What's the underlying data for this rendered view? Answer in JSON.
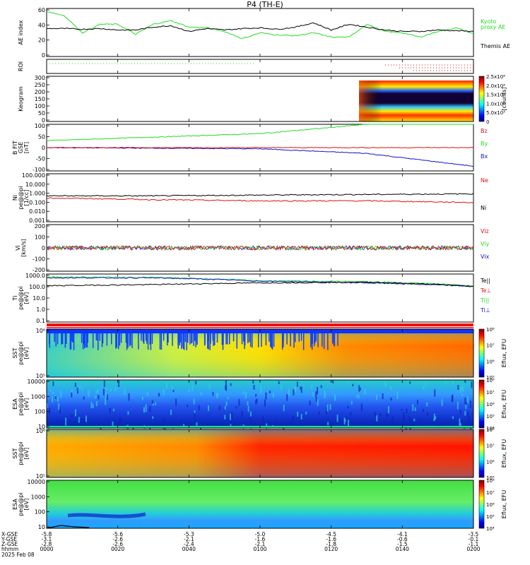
{
  "title": "P4  (TH-E)",
  "colors": {
    "green": "#22dd22",
    "black": "#000000",
    "blue": "#1010d0",
    "red": "#dd1111"
  },
  "panels": [
    {
      "key": "ae",
      "ylabel": [
        "AE index"
      ],
      "yticks": [
        "0",
        "20",
        "40",
        "60"
      ],
      "legend": [
        {
          "text": "Kyoto",
          "color": "green"
        },
        {
          "text": "proxy AE",
          "color": "green"
        },
        {
          "text": "Themis AE",
          "color": "black"
        }
      ]
    },
    {
      "key": "roi",
      "ylabel": [
        "ROI"
      ],
      "yticks": [],
      "legend": []
    },
    {
      "key": "keo",
      "ylabel": [
        "Keogram"
      ],
      "yticks": [
        "0",
        "50",
        "100",
        "150",
        "200",
        "250",
        "300"
      ],
      "colorbar": {
        "ticks": [
          "0",
          "5.0x10³",
          "1.0x10⁴",
          "1.5x10⁴",
          "2.0x10⁴",
          "2.5x10⁴"
        ],
        "label": "[counts]"
      }
    },
    {
      "key": "bfit",
      "ylabel": [
        "B FIT",
        "GSE",
        "[nT]"
      ],
      "yticks": [
        "-100",
        "-50",
        "0",
        "50",
        "100"
      ],
      "legend": [
        {
          "text": "Bz",
          "color": "red"
        },
        {
          "text": "By",
          "color": "green"
        },
        {
          "text": "Bx",
          "color": "blue"
        }
      ]
    },
    {
      "key": "ni",
      "ylabel": [
        "Ni",
        "pe@@pi",
        "[1/cc]"
      ],
      "yticks": [
        "0.001",
        "0.010",
        "0.100",
        "1.000",
        "10.000",
        "100.000"
      ],
      "legend": [
        {
          "text": "Ne",
          "color": "red"
        },
        {
          "text": "Ni",
          "color": "black"
        }
      ]
    },
    {
      "key": "vi",
      "ylabel": [
        "Vi",
        "[km/s]"
      ],
      "yticks": [
        "-200",
        "-100",
        "0",
        "100",
        "200"
      ],
      "legend": [
        {
          "text": "Viz",
          "color": "red"
        },
        {
          "text": "Viy",
          "color": "green"
        },
        {
          "text": "Vix",
          "color": "blue"
        }
      ]
    },
    {
      "key": "ti",
      "ylabel": [
        "Ti",
        "pe@@pi",
        "[eV]"
      ],
      "yticks": [
        "0.1",
        "1.0",
        "10.0",
        "100.0",
        "1000.0"
      ],
      "legend": [
        {
          "text": "Te||",
          "color": "black"
        },
        {
          "text": "Te⊥",
          "color": "red"
        },
        {
          "text": "Ti||",
          "color": "green"
        },
        {
          "text": "Ti⊥",
          "color": "blue"
        }
      ]
    },
    {
      "key": "sst1",
      "ylabel": [
        "SST",
        "pe@@pi",
        "[eV]"
      ],
      "yticks": [
        "10⁵",
        "10⁶"
      ],
      "colorbar": {
        "ticks": [
          "10⁵",
          "10⁶",
          "10⁷",
          "10⁸"
        ],
        "label": "Eflux, EFU"
      }
    },
    {
      "key": "esa1",
      "ylabel": [
        "ESA",
        "pe@@pi",
        "[eV]"
      ],
      "yticks": [
        "10",
        "100",
        "1000",
        "10000"
      ],
      "colorbar": {
        "ticks": [
          "10⁴",
          "10⁵",
          "10⁶",
          "10⁷",
          "10⁸"
        ],
        "label": "Eflux, EFU"
      }
    },
    {
      "key": "sst2",
      "ylabel": [
        "SST",
        "pe@@pi",
        "[eV]"
      ],
      "yticks": [
        "10⁵",
        "10⁶"
      ],
      "colorbar": {
        "ticks": [
          "10⁵",
          "10⁶",
          "10⁷",
          "10⁸"
        ],
        "label": "Eflux, EFU"
      }
    },
    {
      "key": "esa2",
      "ylabel": [
        "ESA",
        "pe@@pi",
        "[eV]"
      ],
      "yticks": [
        "10",
        "100",
        "1000",
        "10000"
      ],
      "colorbar": {
        "ticks": [
          "10⁴",
          "10⁵",
          "10⁶",
          "10⁷",
          "10⁸"
        ],
        "label": "Eflux, EFU"
      }
    }
  ],
  "xaxis": {
    "row_labels": [
      "X-GSE",
      "Y-GSE",
      "Z-GSE",
      "hhmm",
      "2025 Feb 08"
    ],
    "ticks": [
      {
        "x": "-5.8",
        "y": "-3.1",
        "z": "-2.8",
        "t": "0000"
      },
      {
        "x": "-5.6",
        "y": "-2.6",
        "z": "-2.6",
        "t": "0020"
      },
      {
        "x": "-5.3",
        "y": "-2.1",
        "z": "-2.4",
        "t": "0040"
      },
      {
        "x": "-5.0",
        "y": "-1.6",
        "z": "-2.1",
        "t": "0100"
      },
      {
        "x": "-4.5",
        "y": "-1.6",
        "z": "-1.8",
        "t": "0120"
      },
      {
        "x": "-4.1",
        "y": "-0.6",
        "z": "-1.5",
        "t": "0140"
      },
      {
        "x": "-3.5",
        "y": "-0.1",
        "z": "-1.1",
        "t": "0200"
      }
    ]
  },
  "chart_data": [
    {
      "type": "line",
      "title": "AE index",
      "x_minutes": [
        0,
        10,
        20,
        30,
        40,
        50,
        60,
        70,
        80,
        90,
        100,
        110,
        120,
        130,
        140,
        150,
        160,
        170,
        180,
        190,
        200,
        210,
        220,
        230,
        240
      ],
      "series": [
        {
          "name": "Kyoto proxy AE",
          "color": "green",
          "values": [
            58,
            52,
            28,
            40,
            40,
            26,
            40,
            45,
            36,
            35,
            30,
            20,
            28,
            25,
            24,
            28,
            22,
            22,
            40,
            30,
            28,
            22,
            30,
            35,
            27
          ]
        },
        {
          "name": "Themis AE",
          "color": "black",
          "values": [
            34,
            34,
            33,
            34,
            32,
            32,
            36,
            38,
            30,
            34,
            32,
            34,
            35,
            33,
            36,
            42,
            32,
            40,
            36,
            32,
            30,
            30,
            32,
            31,
            30
          ]
        }
      ],
      "ylim": [
        -5,
        62
      ]
    },
    {
      "type": "line",
      "title": "B FIT",
      "x_minutes": [
        0,
        120,
        180,
        240
      ],
      "series": [
        {
          "name": "By",
          "color": "green",
          "values": [
            30,
            60,
            100,
            130
          ]
        },
        {
          "name": "Bx",
          "color": "blue",
          "values": [
            0,
            -5,
            -25,
            -80
          ]
        },
        {
          "name": "Bz",
          "color": "red",
          "values": [
            0,
            0,
            0,
            0
          ]
        }
      ],
      "ylim": [
        -100,
        100
      ]
    },
    {
      "type": "line",
      "title": "Ni",
      "x_minutes": [
        0,
        60,
        120,
        180,
        240
      ],
      "series": [
        {
          "name": "Ni",
          "color": "black",
          "values": [
            0.5,
            0.5,
            0.6,
            0.7,
            0.8
          ]
        },
        {
          "name": "Ne",
          "color": "red",
          "values": [
            0.3,
            0.2,
            0.15,
            0.15,
            0.1
          ]
        }
      ],
      "ylim": [
        0.001,
        100
      ]
    },
    {
      "type": "line",
      "title": "Ti",
      "x_minutes": [
        0,
        60,
        120,
        180,
        240
      ],
      "series": [
        {
          "name": "Ti||",
          "color": "green",
          "values": [
            2500,
            2200,
            1000,
            800,
            300
          ]
        },
        {
          "name": "Ti⊥",
          "color": "blue",
          "values": [
            2000,
            2000,
            900,
            600,
            250
          ]
        },
        {
          "name": "Te||",
          "color": "black",
          "values": [
            300,
            400,
            600,
            700,
            250
          ]
        }
      ],
      "ylim": [
        0.05,
        5000
      ]
    }
  ]
}
